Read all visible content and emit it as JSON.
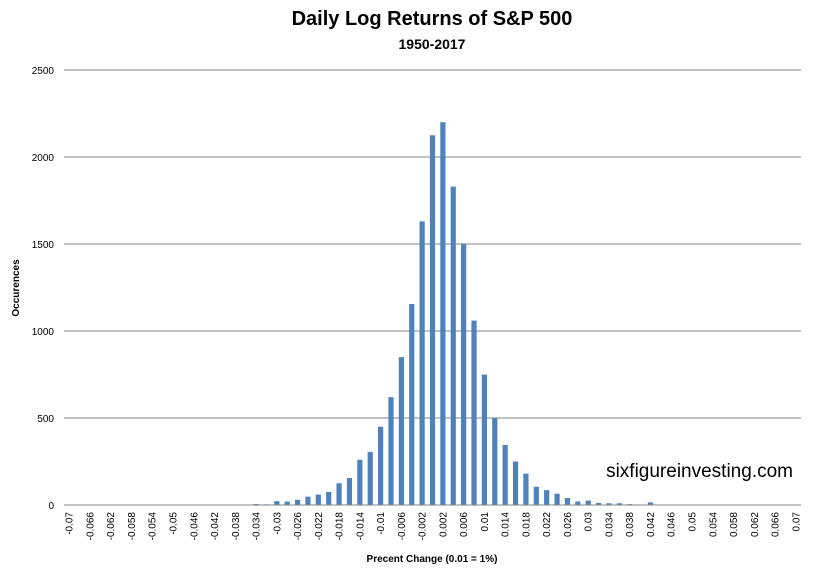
{
  "chart_data": {
    "type": "bar",
    "title": "Daily Log Returns of S&P 500",
    "subtitle": "1950-2017",
    "xlabel": "Precent Change (0.01 = 1%)",
    "ylabel": "Occurences",
    "ylim": [
      0,
      2500
    ],
    "yticks": [
      0,
      500,
      1000,
      1500,
      2000,
      2500
    ],
    "grid": "horizontal",
    "legend": "none",
    "bar_color": "#4f81bd",
    "watermark": "sixfigureinvesting.com",
    "categories": [
      "-0.07",
      "-0.068",
      "-0.066",
      "-0.064",
      "-0.062",
      "-0.06",
      "-0.058",
      "-0.056",
      "-0.054",
      "-0.052",
      "-0.05",
      "-0.048",
      "-0.046",
      "-0.044",
      "-0.042",
      "-0.04",
      "-0.038",
      "-0.036",
      "-0.034",
      "-0.032",
      "-0.03",
      "-0.028",
      "-0.026",
      "-0.024",
      "-0.022",
      "-0.02",
      "-0.018",
      "-0.016",
      "-0.014",
      "-0.012",
      "-0.01",
      "-0.008",
      "-0.006",
      "-0.004",
      "-0.002",
      "0",
      "0.002",
      "0.004",
      "0.006",
      "0.008",
      "0.01",
      "0.012",
      "0.014",
      "0.016",
      "0.018",
      "0.02",
      "0.022",
      "0.024",
      "0.026",
      "0.028",
      "0.03",
      "0.032",
      "0.034",
      "0.036",
      "0.038",
      "0.04",
      "0.042",
      "0.044",
      "0.046",
      "0.048",
      "0.05",
      "0.052",
      "0.054",
      "0.056",
      "0.058",
      "0.06",
      "0.062",
      "0.064",
      "0.066",
      "0.068",
      "0.07"
    ],
    "tick_labels": [
      "-0.07",
      "-0.066",
      "-0.062",
      "-0.058",
      "-0.054",
      "-0.05",
      "-0.046",
      "-0.042",
      "-0.038",
      "-0.034",
      "-0.03",
      "-0.026",
      "-0.022",
      "-0.018",
      "-0.014",
      "-0.01",
      "-0.006",
      "-0.002",
      "0.002",
      "0.006",
      "0.01",
      "0.014",
      "0.018",
      "0.022",
      "0.026",
      "0.03",
      "0.034",
      "0.038",
      "0.042",
      "0.046",
      "0.05",
      "0.054",
      "0.058",
      "0.062",
      "0.066",
      "0.07"
    ],
    "values": [
      1,
      0,
      1,
      0,
      0,
      1,
      0,
      0,
      0,
      1,
      0,
      1,
      0,
      1,
      1,
      2,
      2,
      3,
      6,
      4,
      22,
      20,
      30,
      48,
      60,
      75,
      125,
      155,
      260,
      305,
      450,
      620,
      850,
      1155,
      1630,
      2125,
      2200,
      1830,
      1500,
      1060,
      750,
      500,
      345,
      250,
      180,
      105,
      85,
      65,
      40,
      20,
      25,
      12,
      10,
      10,
      5,
      3,
      15,
      2,
      2,
      1,
      1,
      1,
      0,
      1,
      0,
      1,
      0,
      0,
      0,
      0,
      1
    ]
  }
}
